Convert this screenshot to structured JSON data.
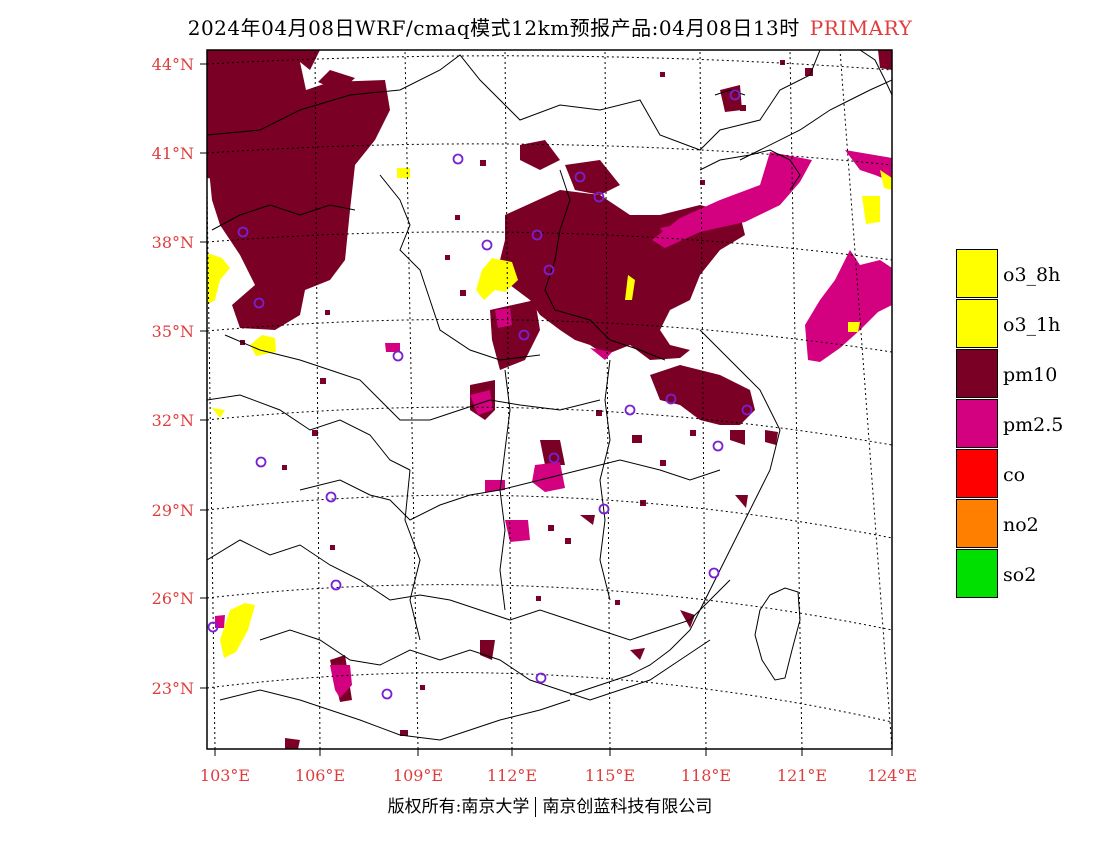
{
  "title": {
    "main": "2024年04月08日WRF/cmaq模式12km预报产品:04月08日13时",
    "tag": "PRIMARY"
  },
  "axes": {
    "lat_labels": [
      "44°N",
      "41°N",
      "38°N",
      "35°N",
      "32°N",
      "29°N",
      "26°N",
      "23°N"
    ],
    "lon_labels": [
      "103°E",
      "106°E",
      "109°E",
      "112°E",
      "115°E",
      "118°E",
      "121°E",
      "124°E"
    ]
  },
  "legend": [
    {
      "label": "o3_8h",
      "color": "#ffff00"
    },
    {
      "label": "o3_1h",
      "color": "#ffff00"
    },
    {
      "label": "pm10",
      "color": "#7a0026"
    },
    {
      "label": "pm2.5",
      "color": "#d3007f"
    },
    {
      "label": "co",
      "color": "#ff0000"
    },
    {
      "label": "no2",
      "color": "#ff7f00"
    },
    {
      "label": "so2",
      "color": "#00e000"
    }
  ],
  "credit": {
    "left": "版权所有:南京大学",
    "right": "南京创蓝科技有限公司"
  }
}
